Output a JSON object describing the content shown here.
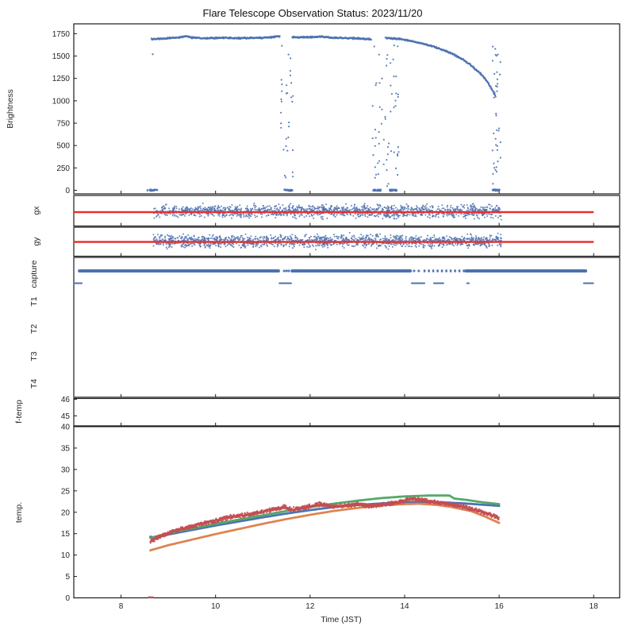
{
  "title": "Flare Telescope Observation Status: 2023/11/20",
  "xlabel": "Time (JST)",
  "x_ticks": [
    8,
    10,
    12,
    14,
    16,
    18
  ],
  "xlim": [
    7.0,
    18.55
  ],
  "colors": {
    "point_blue": "#4C72B0",
    "ref_line_red": "#E8302E",
    "temp_blue": "#4C72B0",
    "temp_orange": "#DD8452",
    "temp_green": "#55A868",
    "temp_red": "#C44E52",
    "spine": "#1c1c1c",
    "background": "#ffffff"
  },
  "chart_data": [
    {
      "id": "brightness",
      "type": "scatter",
      "ylabel": "Brightness",
      "ylim": [
        -40,
        1860
      ],
      "yticks": [
        0,
        250,
        500,
        750,
        1000,
        1250,
        1500,
        1750
      ],
      "main_curve": [
        [
          8.65,
          1688
        ],
        [
          8.8,
          1692
        ],
        [
          9.0,
          1700
        ],
        [
          9.2,
          1706
        ],
        [
          9.35,
          1722
        ],
        [
          9.5,
          1707
        ],
        [
          9.8,
          1700
        ],
        [
          10.1,
          1704
        ],
        [
          10.4,
          1699
        ],
        [
          10.7,
          1702
        ],
        [
          11.0,
          1704
        ],
        [
          11.2,
          1712
        ],
        [
          11.3,
          1722
        ],
        [
          11.36,
          1716
        ],
        [
          11.62,
          1712
        ],
        [
          11.8,
          1707
        ],
        [
          12.0,
          1712
        ],
        [
          12.25,
          1716
        ],
        [
          12.45,
          1704
        ],
        [
          12.7,
          1701
        ],
        [
          12.95,
          1698
        ],
        [
          13.15,
          1693
        ],
        [
          13.3,
          1688
        ],
        [
          13.6,
          1702
        ],
        [
          13.75,
          1695
        ],
        [
          13.9,
          1690
        ],
        [
          14.05,
          1678
        ],
        [
          14.2,
          1662
        ],
        [
          14.35,
          1643
        ],
        [
          14.5,
          1622
        ],
        [
          14.65,
          1598
        ],
        [
          14.8,
          1570
        ],
        [
          14.95,
          1538
        ],
        [
          15.1,
          1500
        ],
        [
          15.25,
          1455
        ],
        [
          15.4,
          1398
        ],
        [
          15.55,
          1330
        ],
        [
          15.68,
          1262
        ],
        [
          15.78,
          1190
        ],
        [
          15.86,
          1118
        ],
        [
          15.93,
          1048
        ]
      ],
      "gaps": [
        [
          11.36,
          11.62
        ],
        [
          13.3,
          13.6
        ]
      ],
      "lone_points": [
        [
          8.67,
          1520
        ]
      ],
      "zero_clusters": [
        [
          8.55,
          8.77
        ],
        [
          11.44,
          11.63
        ],
        [
          13.33,
          13.5
        ],
        [
          13.68,
          13.85
        ],
        [
          15.86,
          16.02
        ]
      ],
      "dropout_windows": [
        [
          11.38,
          11.64,
          32
        ],
        [
          13.3,
          13.88,
          60
        ],
        [
          15.86,
          16.03,
          38
        ]
      ]
    },
    {
      "id": "gx",
      "type": "scatter",
      "ylabel": "gx",
      "points_trange": [
        8.68,
        16.05
      ],
      "n_points": 1500,
      "ref_line": {
        "trange": [
          7.0,
          18.0
        ]
      }
    },
    {
      "id": "gy",
      "type": "scatter",
      "ylabel": "gy",
      "points_trange": [
        8.68,
        16.05
      ],
      "n_points": 1500,
      "ref_line": {
        "trange": [
          7.0,
          18.0
        ]
      }
    },
    {
      "id": "capture",
      "type": "status",
      "row_labels": [
        "capture",
        "T1",
        "T2",
        "T3",
        "T4"
      ],
      "on_segments": [
        [
          7.12,
          11.33
        ],
        [
          11.62,
          14.12
        ],
        [
          15.3,
          17.83
        ]
      ],
      "intermittent_segments": [
        [
          14.4,
          15.3
        ]
      ],
      "on_dots": [
        11.45,
        11.5,
        11.55,
        14.2,
        14.3
      ],
      "off_dashes": [
        [
          7.0,
          7.17
        ],
        [
          11.35,
          11.6
        ],
        [
          14.15,
          14.42
        ],
        [
          14.62,
          14.82
        ],
        [
          15.32,
          15.36
        ],
        [
          17.79,
          17.99
        ]
      ]
    },
    {
      "id": "f_temp",
      "type": "line",
      "ylabel": "f-temp",
      "ylim": [
        44.4,
        46.05
      ],
      "yticks": [
        45,
        46
      ],
      "series": []
    },
    {
      "id": "temp",
      "type": "line",
      "ylabel": "temp.",
      "ylim": [
        0,
        40
      ],
      "yticks": [
        0,
        5,
        10,
        15,
        20,
        25,
        30,
        35,
        40
      ],
      "series": [
        {
          "name": "temp-blue",
          "color": "#4C72B0",
          "style": "line",
          "points": [
            [
              8.62,
              14.3
            ],
            [
              8.72,
              14.05
            ],
            [
              9.0,
              14.8
            ],
            [
              9.5,
              15.85
            ],
            [
              10.0,
              16.9
            ],
            [
              10.5,
              17.85
            ],
            [
              11.0,
              18.8
            ],
            [
              11.5,
              19.7
            ],
            [
              12.0,
              20.5
            ],
            [
              12.5,
              21.2
            ],
            [
              13.0,
              21.7
            ],
            [
              13.5,
              22.05
            ],
            [
              14.0,
              22.3
            ],
            [
              14.4,
              22.4
            ],
            [
              14.8,
              22.3
            ],
            [
              15.2,
              22.1
            ],
            [
              15.6,
              21.8
            ],
            [
              16.0,
              21.5
            ]
          ]
        },
        {
          "name": "temp-orange",
          "color": "#DD8452",
          "style": "line",
          "points": [
            [
              8.62,
              11.1
            ],
            [
              9.0,
              12.3
            ],
            [
              9.5,
              13.6
            ],
            [
              10.0,
              14.9
            ],
            [
              10.5,
              16.1
            ],
            [
              11.0,
              17.3
            ],
            [
              11.5,
              18.4
            ],
            [
              12.0,
              19.4
            ],
            [
              12.5,
              20.3
            ],
            [
              13.0,
              21.0
            ],
            [
              13.5,
              21.6
            ],
            [
              14.0,
              21.9
            ],
            [
              14.3,
              22.0
            ],
            [
              14.7,
              21.7
            ],
            [
              15.0,
              21.2
            ],
            [
              15.4,
              20.3
            ],
            [
              15.7,
              19.0
            ],
            [
              16.0,
              17.5
            ]
          ]
        },
        {
          "name": "temp-green",
          "color": "#55A868",
          "style": "line",
          "points": [
            [
              8.62,
              14.0
            ],
            [
              9.0,
              15.1
            ],
            [
              9.5,
              16.2
            ],
            [
              10.0,
              17.3
            ],
            [
              10.5,
              18.3
            ],
            [
              11.0,
              19.3
            ],
            [
              11.5,
              20.3
            ],
            [
              12.0,
              21.2
            ],
            [
              12.5,
              22.0
            ],
            [
              13.0,
              22.7
            ],
            [
              13.5,
              23.3
            ],
            [
              14.0,
              23.7
            ],
            [
              14.5,
              23.9
            ],
            [
              14.95,
              23.9
            ],
            [
              15.05,
              23.2
            ],
            [
              15.3,
              22.9
            ],
            [
              15.6,
              22.4
            ],
            [
              16.0,
              21.9
            ]
          ]
        },
        {
          "name": "temp-red",
          "color": "#C44E52",
          "style": "noisy-dots",
          "points": [
            [
              8.62,
              13.2
            ],
            [
              8.8,
              14.2
            ],
            [
              9.0,
              15.2
            ],
            [
              9.3,
              16.2
            ],
            [
              9.6,
              16.9
            ],
            [
              10.0,
              18.0
            ],
            [
              10.3,
              18.9
            ],
            [
              10.6,
              19.3
            ],
            [
              11.0,
              20.1
            ],
            [
              11.3,
              20.9
            ],
            [
              11.45,
              21.3
            ],
            [
              11.6,
              20.6
            ],
            [
              11.8,
              20.9
            ],
            [
              12.0,
              21.4
            ],
            [
              12.2,
              21.9
            ],
            [
              12.5,
              21.4
            ],
            [
              12.8,
              21.6
            ],
            [
              13.0,
              21.9
            ],
            [
              13.3,
              21.4
            ],
            [
              13.6,
              21.8
            ],
            [
              13.9,
              22.4
            ],
            [
              14.1,
              23.1
            ],
            [
              14.3,
              23.0
            ],
            [
              14.6,
              22.4
            ],
            [
              14.9,
              22.0
            ],
            [
              15.2,
              21.4
            ],
            [
              15.5,
              20.5
            ],
            [
              15.8,
              19.5
            ],
            [
              16.0,
              18.7
            ]
          ],
          "zero_marks": [
            [
              8.56,
              8.68
            ]
          ]
        }
      ]
    }
  ]
}
